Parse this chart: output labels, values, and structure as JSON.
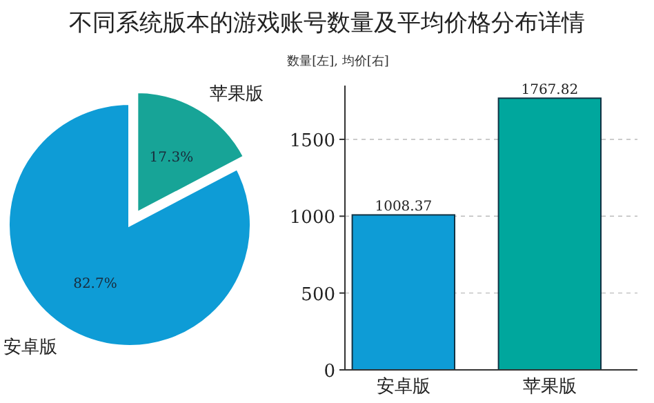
{
  "chart_data": [
    {
      "type": "pie",
      "title": "不同系统版本的游戏账号数量及平均价格分布详情",
      "categories": [
        "苹果版",
        "安卓版"
      ],
      "values": [
        17.3,
        82.7
      ],
      "colors": [
        "#17a497",
        "#0e9cd6"
      ],
      "value_labels": [
        "17.3%",
        "82.7%"
      ]
    },
    {
      "type": "bar",
      "subtitle": "数量[左], 均价[右]",
      "categories": [
        "安卓版",
        "苹果版"
      ],
      "values": [
        1008.37,
        1767.82
      ],
      "colors": [
        "#0e9cd6",
        "#00a79d"
      ],
      "ylim": [
        0,
        1850
      ],
      "yticks": [
        0,
        500,
        1000,
        1500
      ],
      "grid": "y",
      "data_labels": true
    }
  ]
}
